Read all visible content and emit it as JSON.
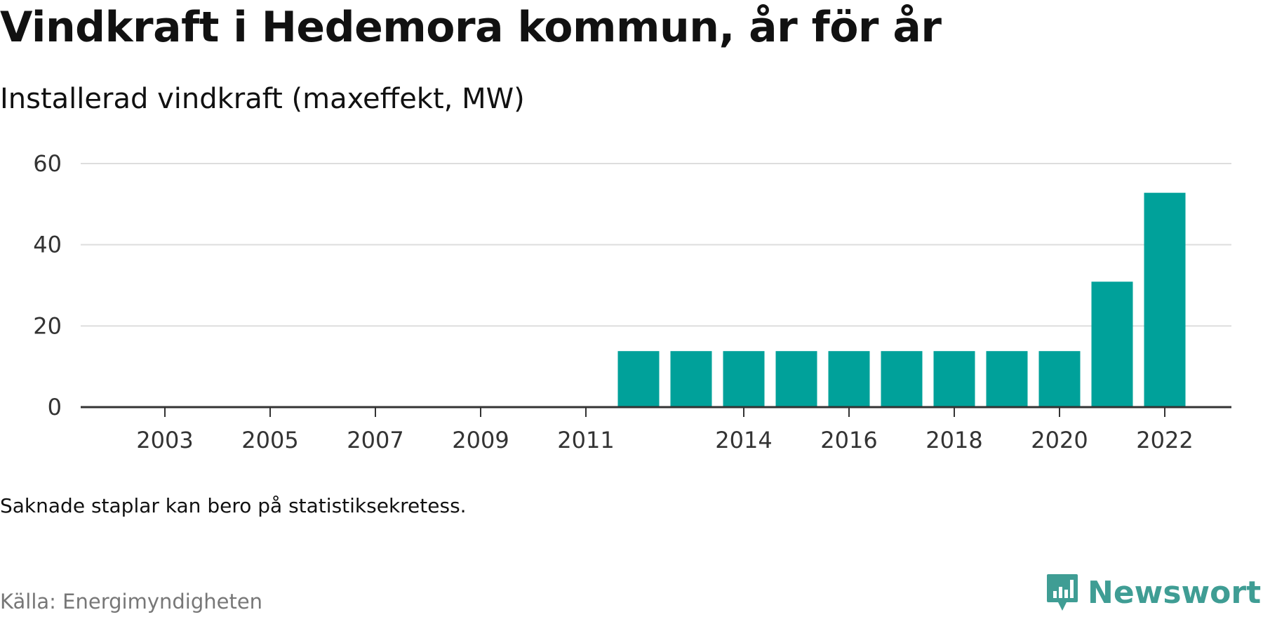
{
  "header": {
    "title": "Vindkraft i Hedemora kommun, år för år",
    "subtitle": "Installerad vindkraft (maxeffekt, MW)"
  },
  "footer": {
    "note": "Saknade staplar kan bero på statistiksekretess.",
    "source": "Källa: Energimyndigheten",
    "brand": "Newsworthy",
    "brand_icon": "newsworthy-logo-icon"
  },
  "colors": {
    "bar": "#00a19a",
    "grid": "#dddddd",
    "axis": "#333333",
    "brand": "#3f9d94"
  },
  "chart_data": {
    "type": "bar",
    "title": "Vindkraft i Hedemora kommun, år för år",
    "subtitle": "Installerad vindkraft (maxeffekt, MW)",
    "categories": [
      "2002",
      "2003",
      "2004",
      "2005",
      "2006",
      "2007",
      "2008",
      "2009",
      "2010",
      "2011",
      "2012",
      "2013",
      "2014",
      "2015",
      "2016",
      "2017",
      "2018",
      "2019",
      "2020",
      "2021",
      "2022"
    ],
    "values": [
      0,
      0,
      0,
      0,
      0,
      0,
      0,
      0,
      0,
      0,
      13.8,
      13.8,
      13.8,
      13.8,
      13.8,
      13.8,
      13.8,
      13.8,
      13.8,
      30.9,
      52.8
    ],
    "x_tick_labels": [
      "2003",
      "2005",
      "2007",
      "2009",
      "2011",
      "2014",
      "2016",
      "2018",
      "2020",
      "2022"
    ],
    "y_ticks": [
      0,
      20,
      40,
      60
    ],
    "ylim": [
      0,
      60
    ],
    "xlabel": "",
    "ylabel": "",
    "grid": true,
    "legend": "none"
  }
}
